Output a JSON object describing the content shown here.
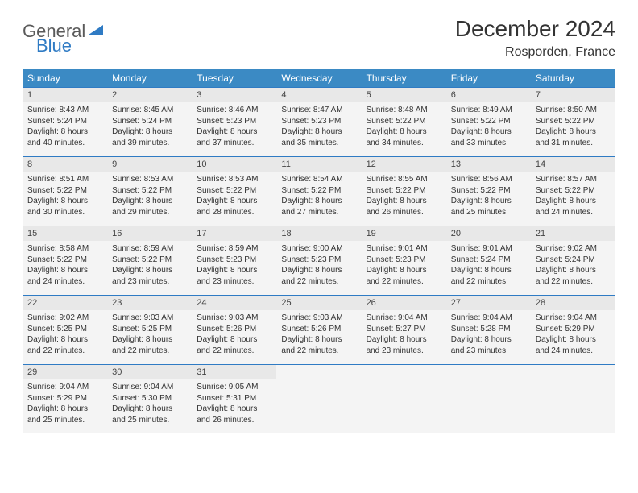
{
  "logo": {
    "text1": "General",
    "text2": "Blue"
  },
  "title": "December 2024",
  "location": "Rosporden, France",
  "colors": {
    "header_bg": "#3b8ac4",
    "header_text": "#ffffff",
    "daynum_bg": "#e8e8e8",
    "cell_bg": "#f4f4f4",
    "border": "#2f7bc4",
    "logo_gray": "#5a5a5a",
    "logo_blue": "#2f7bc4"
  },
  "weekdays": [
    "Sunday",
    "Monday",
    "Tuesday",
    "Wednesday",
    "Thursday",
    "Friday",
    "Saturday"
  ],
  "weeks": [
    [
      {
        "n": "1",
        "sr": "8:43 AM",
        "ss": "5:24 PM",
        "dl": "8 hours and 40 minutes."
      },
      {
        "n": "2",
        "sr": "8:45 AM",
        "ss": "5:24 PM",
        "dl": "8 hours and 39 minutes."
      },
      {
        "n": "3",
        "sr": "8:46 AM",
        "ss": "5:23 PM",
        "dl": "8 hours and 37 minutes."
      },
      {
        "n": "4",
        "sr": "8:47 AM",
        "ss": "5:23 PM",
        "dl": "8 hours and 35 minutes."
      },
      {
        "n": "5",
        "sr": "8:48 AM",
        "ss": "5:22 PM",
        "dl": "8 hours and 34 minutes."
      },
      {
        "n": "6",
        "sr": "8:49 AM",
        "ss": "5:22 PM",
        "dl": "8 hours and 33 minutes."
      },
      {
        "n": "7",
        "sr": "8:50 AM",
        "ss": "5:22 PM",
        "dl": "8 hours and 31 minutes."
      }
    ],
    [
      {
        "n": "8",
        "sr": "8:51 AM",
        "ss": "5:22 PM",
        "dl": "8 hours and 30 minutes."
      },
      {
        "n": "9",
        "sr": "8:53 AM",
        "ss": "5:22 PM",
        "dl": "8 hours and 29 minutes."
      },
      {
        "n": "10",
        "sr": "8:53 AM",
        "ss": "5:22 PM",
        "dl": "8 hours and 28 minutes."
      },
      {
        "n": "11",
        "sr": "8:54 AM",
        "ss": "5:22 PM",
        "dl": "8 hours and 27 minutes."
      },
      {
        "n": "12",
        "sr": "8:55 AM",
        "ss": "5:22 PM",
        "dl": "8 hours and 26 minutes."
      },
      {
        "n": "13",
        "sr": "8:56 AM",
        "ss": "5:22 PM",
        "dl": "8 hours and 25 minutes."
      },
      {
        "n": "14",
        "sr": "8:57 AM",
        "ss": "5:22 PM",
        "dl": "8 hours and 24 minutes."
      }
    ],
    [
      {
        "n": "15",
        "sr": "8:58 AM",
        "ss": "5:22 PM",
        "dl": "8 hours and 24 minutes."
      },
      {
        "n": "16",
        "sr": "8:59 AM",
        "ss": "5:22 PM",
        "dl": "8 hours and 23 minutes."
      },
      {
        "n": "17",
        "sr": "8:59 AM",
        "ss": "5:23 PM",
        "dl": "8 hours and 23 minutes."
      },
      {
        "n": "18",
        "sr": "9:00 AM",
        "ss": "5:23 PM",
        "dl": "8 hours and 22 minutes."
      },
      {
        "n": "19",
        "sr": "9:01 AM",
        "ss": "5:23 PM",
        "dl": "8 hours and 22 minutes."
      },
      {
        "n": "20",
        "sr": "9:01 AM",
        "ss": "5:24 PM",
        "dl": "8 hours and 22 minutes."
      },
      {
        "n": "21",
        "sr": "9:02 AM",
        "ss": "5:24 PM",
        "dl": "8 hours and 22 minutes."
      }
    ],
    [
      {
        "n": "22",
        "sr": "9:02 AM",
        "ss": "5:25 PM",
        "dl": "8 hours and 22 minutes."
      },
      {
        "n": "23",
        "sr": "9:03 AM",
        "ss": "5:25 PM",
        "dl": "8 hours and 22 minutes."
      },
      {
        "n": "24",
        "sr": "9:03 AM",
        "ss": "5:26 PM",
        "dl": "8 hours and 22 minutes."
      },
      {
        "n": "25",
        "sr": "9:03 AM",
        "ss": "5:26 PM",
        "dl": "8 hours and 22 minutes."
      },
      {
        "n": "26",
        "sr": "9:04 AM",
        "ss": "5:27 PM",
        "dl": "8 hours and 23 minutes."
      },
      {
        "n": "27",
        "sr": "9:04 AM",
        "ss": "5:28 PM",
        "dl": "8 hours and 23 minutes."
      },
      {
        "n": "28",
        "sr": "9:04 AM",
        "ss": "5:29 PM",
        "dl": "8 hours and 24 minutes."
      }
    ],
    [
      {
        "n": "29",
        "sr": "9:04 AM",
        "ss": "5:29 PM",
        "dl": "8 hours and 25 minutes."
      },
      {
        "n": "30",
        "sr": "9:04 AM",
        "ss": "5:30 PM",
        "dl": "8 hours and 25 minutes."
      },
      {
        "n": "31",
        "sr": "9:05 AM",
        "ss": "5:31 PM",
        "dl": "8 hours and 26 minutes."
      },
      null,
      null,
      null,
      null
    ]
  ],
  "labels": {
    "sunrise": "Sunrise:",
    "sunset": "Sunset:",
    "daylight": "Daylight:"
  }
}
